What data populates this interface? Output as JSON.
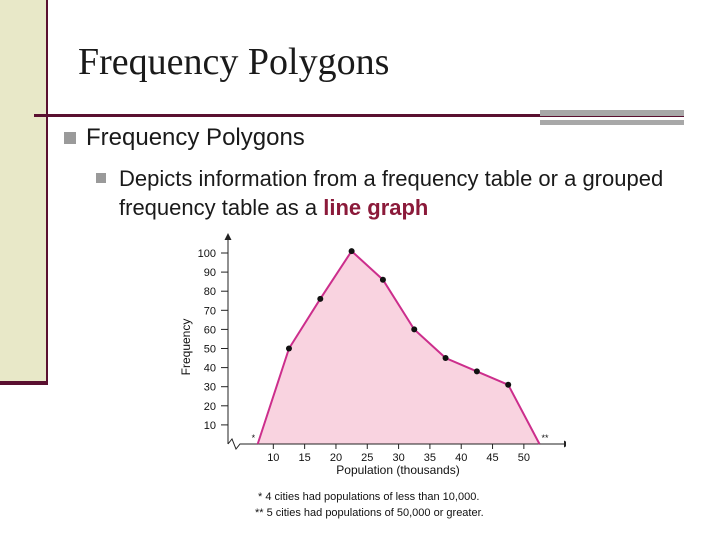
{
  "slide": {
    "title": "Frequency Polygons",
    "bullet1": "Frequency Polygons",
    "bullet2_text": "Depicts information from a frequency table or a grouped frequency table as a ",
    "bullet2_highlight": "line graph"
  },
  "colors": {
    "accent": "#5a1030",
    "highlight": "#8b1a3a",
    "line": "#cc2e8c",
    "fill": "#f9d3e0"
  },
  "chart_data": {
    "type": "line",
    "xlabel": "Population (thousands)",
    "ylabel": "Frequency",
    "x_ticks": [
      10,
      15,
      20,
      25,
      30,
      35,
      40,
      45,
      50
    ],
    "y_ticks": [
      10,
      20,
      30,
      40,
      50,
      60,
      70,
      80,
      90,
      100
    ],
    "xlim": [
      5,
      55
    ],
    "ylim": [
      0,
      100
    ],
    "points": [
      {
        "x": 12.5,
        "y": 50
      },
      {
        "x": 17.5,
        "y": 76
      },
      {
        "x": 22.5,
        "y": 101
      },
      {
        "x": 27.5,
        "y": 86
      },
      {
        "x": 32.5,
        "y": 60
      },
      {
        "x": 37.5,
        "y": 45
      },
      {
        "x": 42.5,
        "y": 38
      },
      {
        "x": 47.5,
        "y": 31
      }
    ],
    "start_x": 7.5,
    "end_x": 52.5,
    "start_marker": "*",
    "end_marker": "**",
    "footnotes": [
      "* 4 cities had populations of less than 10,000.",
      "** 5 cities had populations of 50,000 or greater."
    ]
  }
}
